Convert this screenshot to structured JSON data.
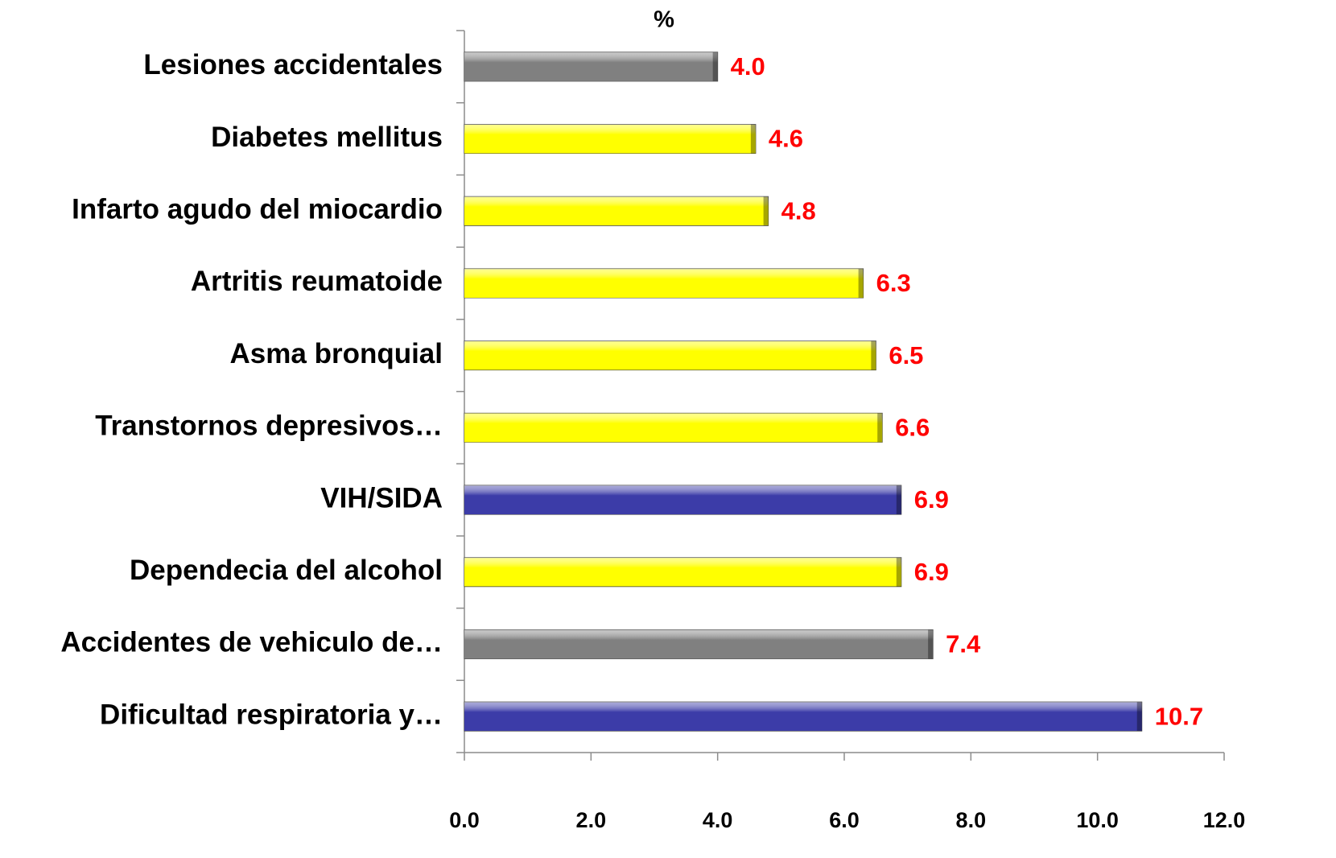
{
  "chart_data": {
    "type": "bar",
    "orientation": "horizontal",
    "title": "%",
    "categories": [
      "Lesiones accidentales",
      "Diabetes mellitus",
      "Infarto agudo del miocardio",
      "Artritis reumatoide",
      "Asma bronquial",
      "Transtornos depresivos…",
      "VIH/SIDA",
      "Dependecia del alcohol",
      "Accidentes de vehiculo de…",
      "Dificultad respiratoria y…"
    ],
    "values": [
      4.0,
      4.6,
      4.8,
      6.3,
      6.5,
      6.6,
      6.9,
      6.9,
      7.4,
      10.7
    ],
    "value_labels": [
      "4.0",
      "4.6",
      "4.8",
      "6.3",
      "6.5",
      "6.6",
      "6.9",
      "6.9",
      "7.4",
      "10.7"
    ],
    "colors": [
      "#808080",
      "#ffff00",
      "#ffff00",
      "#ffff00",
      "#ffff00",
      "#ffff00",
      "#3c3ca8",
      "#ffff00",
      "#808080",
      "#3c3ca8"
    ],
    "xlim": [
      0,
      12
    ],
    "xticks": [
      {
        "value": 0,
        "label": "0.0"
      },
      {
        "value": 2,
        "label": "2.0"
      },
      {
        "value": 4,
        "label": "4.0"
      },
      {
        "value": 6,
        "label": "6.0"
      },
      {
        "value": 8,
        "label": "8.0"
      },
      {
        "value": 10,
        "label": "10.0"
      },
      {
        "value": 12,
        "label": "12.0"
      }
    ],
    "grid": false
  }
}
